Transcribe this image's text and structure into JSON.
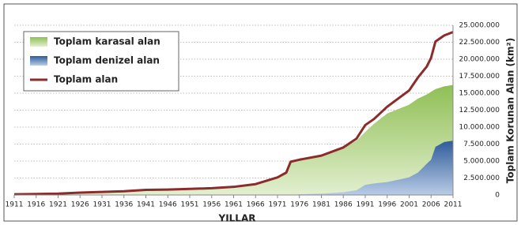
{
  "chart_data": {
    "type": "area-line",
    "x_label": "YILLAR",
    "y_label": "Toplam Korunan Alan (km²)",
    "x": [
      1911,
      1916,
      1921,
      1926,
      1931,
      1936,
      1941,
      1946,
      1951,
      1956,
      1961,
      1966,
      1971,
      1973,
      1974,
      1976,
      1981,
      1986,
      1989,
      1991,
      1993,
      1996,
      2001,
      2003,
      2005,
      2006,
      2007,
      2009,
      2011
    ],
    "series": [
      {
        "name": "Toplam karasal alan",
        "kind": "area",
        "color": "#a7cd78",
        "values": [
          100000,
          150000,
          200000,
          350000,
          450000,
          550000,
          750000,
          800000,
          900000,
          1000000,
          1200000,
          1600000,
          2600000,
          3300000,
          4700000,
          5000000,
          5700000,
          6900000,
          8000000,
          9300000,
          10500000,
          12000000,
          13300000,
          14200000,
          14800000,
          15200000,
          15600000,
          16000000,
          16200000
        ]
      },
      {
        "name": "Toplam denizel alan",
        "kind": "area",
        "color": "#4a73ae",
        "values": [
          0,
          0,
          0,
          0,
          0,
          0,
          0,
          0,
          0,
          0,
          0,
          0,
          0,
          0,
          0,
          100000,
          200000,
          400000,
          700000,
          1500000,
          1700000,
          1900000,
          2600000,
          3300000,
          4600000,
          5200000,
          7100000,
          7800000,
          8000000
        ]
      },
      {
        "name": "Toplam alan",
        "kind": "line",
        "color": "#8b2b2b",
        "values": [
          100000,
          150000,
          200000,
          350000,
          450000,
          550000,
          750000,
          800000,
          900000,
          1000000,
          1200000,
          1600000,
          2600000,
          3300000,
          4900000,
          5200000,
          5800000,
          7000000,
          8300000,
          10300000,
          11200000,
          13000000,
          15400000,
          17300000,
          18900000,
          20200000,
          22600000,
          23500000,
          24000000
        ]
      }
    ],
    "xlim": [
      1911,
      2011
    ],
    "xticks": [
      1911,
      1916,
      1921,
      1926,
      1931,
      1936,
      1941,
      1946,
      1951,
      1956,
      1961,
      1966,
      1971,
      1976,
      1981,
      1986,
      1991,
      1996,
      2001,
      2006,
      2011
    ],
    "ylim": [
      0,
      25000000
    ],
    "yticks": [
      0,
      {
        "value": 2500000,
        "label": "2.500.000"
      },
      {
        "value": 5000000,
        "label": "5.000.000"
      },
      {
        "value": 7500000,
        "label": "7.500.000"
      },
      {
        "value": 10000000,
        "label": "10.000.000"
      },
      {
        "value": 12500000,
        "label": "12.500.000"
      },
      {
        "value": 15000000,
        "label": "15.000.000"
      },
      {
        "value": 17500000,
        "label": "17.500.000"
      },
      {
        "value": 20000000,
        "label": "20.000.000"
      },
      {
        "value": 22500000,
        "label": "22.500.000"
      },
      {
        "value": 25000000,
        "label": "25.000.000"
      }
    ],
    "grid": true,
    "legend": "upper left"
  }
}
